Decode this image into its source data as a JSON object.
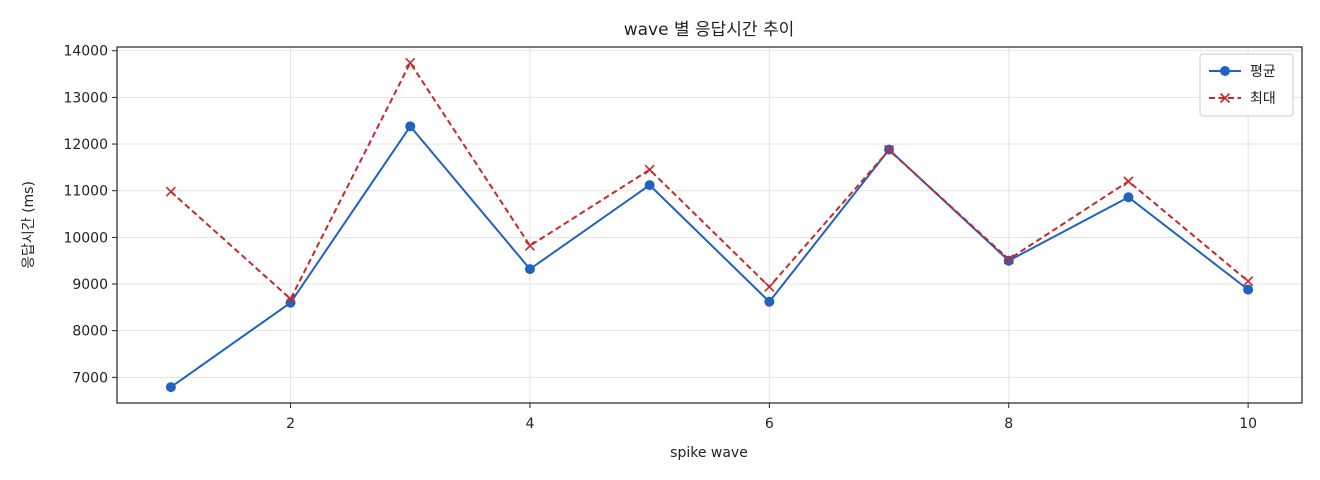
{
  "chart_data": {
    "type": "line",
    "title": "wave 별 응답시간 추이",
    "xlabel": "spike wave",
    "ylabel": "응답시간 (ms)",
    "x": [
      1,
      2,
      3,
      4,
      5,
      6,
      7,
      8,
      9,
      10
    ],
    "xlim": [
      0.55,
      10.45
    ],
    "ylim": [
      6450,
      14080
    ],
    "xticks": [
      2,
      4,
      6,
      8,
      10
    ],
    "yticks": [
      7000,
      8000,
      9000,
      10000,
      11000,
      12000,
      13000,
      14000
    ],
    "grid": true,
    "legend_position": "top-right",
    "series": [
      {
        "name": "평균",
        "color": "#1f63c0",
        "line_style": "solid",
        "marker": "circle",
        "values": [
          6790,
          8600,
          12380,
          9320,
          11120,
          8620,
          11880,
          9500,
          10860,
          8880
        ]
      },
      {
        "name": "최대",
        "color": "#c8282c",
        "line_style": "dashed",
        "marker": "x",
        "values": [
          10980,
          8680,
          13740,
          9820,
          11450,
          8940,
          11870,
          9530,
          11200,
          9060
        ]
      }
    ]
  }
}
